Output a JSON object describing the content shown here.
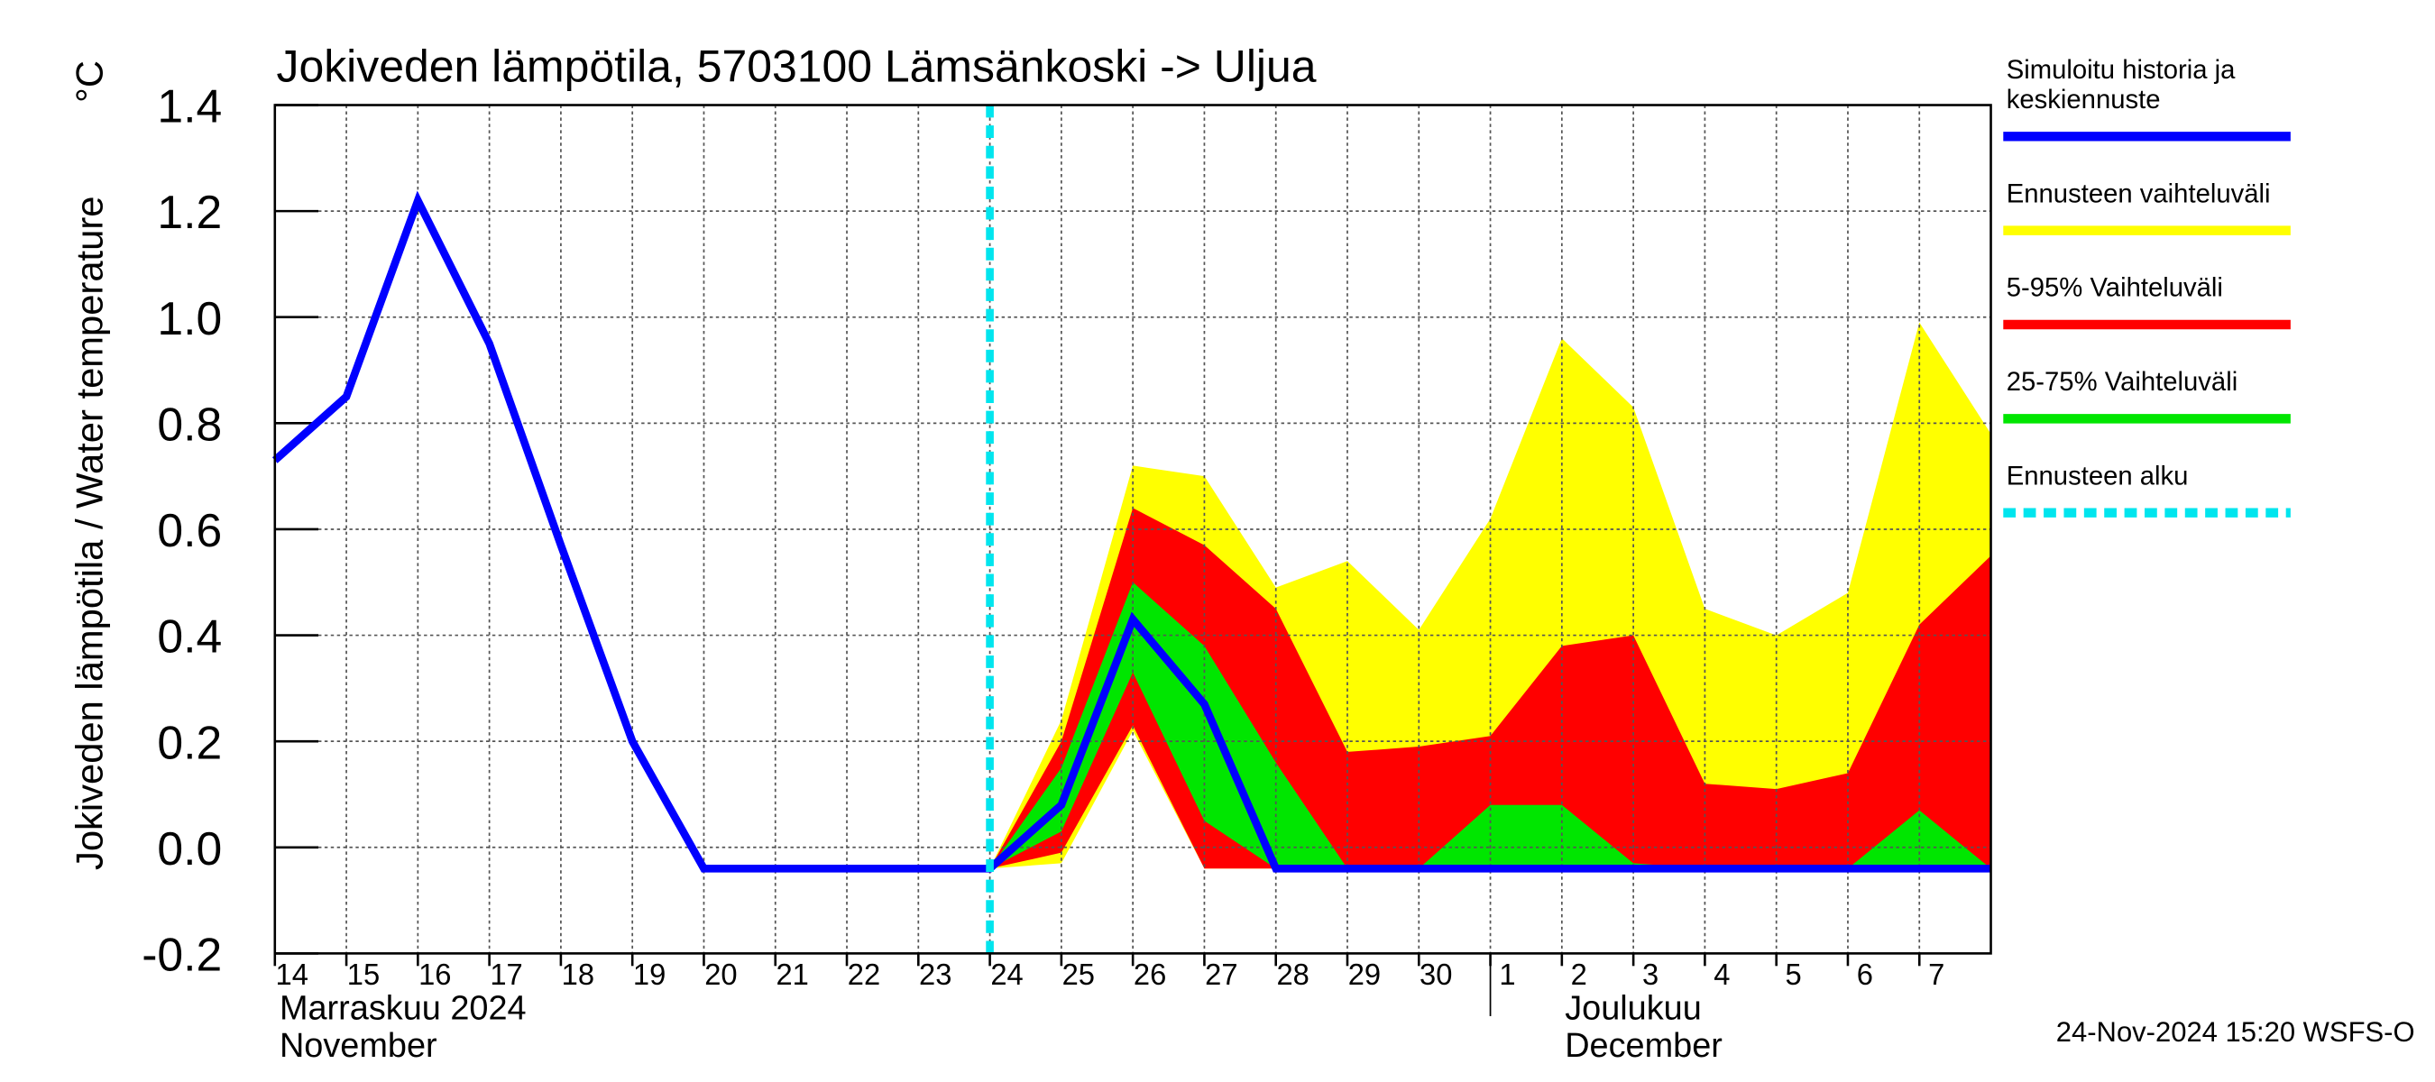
{
  "chart_data": {
    "type": "line",
    "title": "Jokiveden lämpötila, 5703100 Lämsänkoski -> Uljua",
    "y_label": "Jokiveden lämpötila / Water temperature",
    "y_unit": "°C",
    "footer": "24-Nov-2024 15:20 WSFS-O",
    "xlim": [
      "2024-11-14",
      "2024-12-08"
    ],
    "ylim": [
      -0.2,
      1.4
    ],
    "yticks": [
      -0.2,
      {
        "value": 0.0,
        "label": "0.0"
      },
      0.2,
      0.4,
      0.6,
      0.8,
      {
        "value": 1.0,
        "label": "1.0"
      },
      1.2,
      1.4
    ],
    "xticks": [
      {
        "value": "2024-11-14",
        "label": "14"
      },
      {
        "value": "2024-11-15",
        "label": "15"
      },
      {
        "value": "2024-11-16",
        "label": "16"
      },
      {
        "value": "2024-11-17",
        "label": "17"
      },
      {
        "value": "2024-11-18",
        "label": "18"
      },
      {
        "value": "2024-11-19",
        "label": "19"
      },
      {
        "value": "2024-11-20",
        "label": "20"
      },
      {
        "value": "2024-11-21",
        "label": "21"
      },
      {
        "value": "2024-11-22",
        "label": "22"
      },
      {
        "value": "2024-11-23",
        "label": "23"
      },
      {
        "value": "2024-11-24",
        "label": "24"
      },
      {
        "value": "2024-11-25",
        "label": "25"
      },
      {
        "value": "2024-11-26",
        "label": "26"
      },
      {
        "value": "2024-11-27",
        "label": "27"
      },
      {
        "value": "2024-11-28",
        "label": "28"
      },
      {
        "value": "2024-11-29",
        "label": "29"
      },
      {
        "value": "2024-11-30",
        "label": "30"
      },
      {
        "value": "2024-12-01",
        "label": "1"
      },
      {
        "value": "2024-12-02",
        "label": "2"
      },
      {
        "value": "2024-12-03",
        "label": "3"
      },
      {
        "value": "2024-12-04",
        "label": "4"
      },
      {
        "value": "2024-12-05",
        "label": "5"
      },
      {
        "value": "2024-12-06",
        "label": "6"
      },
      {
        "value": "2024-12-07",
        "label": "7"
      }
    ],
    "months": [
      {
        "start": "2024-11-14",
        "labels": [
          "Marraskuu 2024",
          "November"
        ]
      },
      {
        "start": "2024-12-01",
        "labels": [
          "Joulukuu",
          "December"
        ]
      }
    ],
    "grid": true,
    "bands": [
      {
        "name": "Ennusteen vaihteluväli",
        "color": "#ffff00",
        "x": [
          "2024-11-24",
          "2024-11-25",
          "2024-11-26",
          "2024-11-27",
          "2024-11-28",
          "2024-11-29",
          "2024-11-30",
          "2024-12-01",
          "2024-12-02",
          "2024-12-03",
          "2024-12-04",
          "2024-12-05",
          "2024-12-06",
          "2024-12-07",
          "2024-12-08"
        ],
        "high": [
          -0.04,
          0.24,
          0.72,
          0.7,
          0.49,
          0.54,
          0.41,
          0.62,
          0.96,
          0.83,
          0.45,
          0.4,
          0.48,
          0.99,
          0.78
        ],
        "low": [
          -0.04,
          -0.03,
          0.22,
          -0.04,
          -0.04,
          -0.04,
          -0.04,
          -0.04,
          -0.04,
          -0.04,
          -0.04,
          -0.04,
          -0.04,
          -0.04,
          -0.04
        ]
      },
      {
        "name": "5-95% Vaihteluväli",
        "color": "#ff0000",
        "x": [
          "2024-11-24",
          "2024-11-25",
          "2024-11-26",
          "2024-11-27",
          "2024-11-28",
          "2024-11-29",
          "2024-11-30",
          "2024-12-01",
          "2024-12-02",
          "2024-12-03",
          "2024-12-04",
          "2024-12-05",
          "2024-12-06",
          "2024-12-07",
          "2024-12-08"
        ],
        "high": [
          -0.04,
          0.2,
          0.64,
          0.57,
          0.45,
          0.18,
          0.19,
          0.21,
          0.38,
          0.4,
          0.12,
          0.11,
          0.14,
          0.42,
          0.55
        ],
        "low": [
          -0.04,
          -0.01,
          0.23,
          -0.04,
          -0.04,
          -0.04,
          -0.04,
          -0.04,
          -0.04,
          -0.04,
          -0.04,
          -0.04,
          -0.04,
          -0.04,
          -0.04
        ]
      },
      {
        "name": "25-75% Vaihteluväli",
        "color": "#00e600",
        "x": [
          "2024-11-24",
          "2024-11-25",
          "2024-11-26",
          "2024-11-27",
          "2024-11-28",
          "2024-11-29",
          "2024-11-30",
          "2024-12-01",
          "2024-12-02",
          "2024-12-03",
          "2024-12-04",
          "2024-12-05",
          "2024-12-06",
          "2024-12-07",
          "2024-12-08"
        ],
        "high": [
          -0.04,
          0.15,
          0.5,
          0.38,
          0.16,
          -0.04,
          -0.04,
          0.08,
          0.08,
          -0.03,
          -0.04,
          -0.04,
          -0.04,
          0.07,
          -0.04
        ],
        "low": [
          -0.04,
          0.03,
          0.33,
          0.05,
          -0.04,
          -0.04,
          -0.04,
          -0.04,
          -0.04,
          -0.04,
          -0.04,
          -0.04,
          -0.04,
          -0.04,
          -0.04
        ]
      }
    ],
    "series": [
      {
        "name": "Simuloitu historia ja\nkeskiennuste",
        "color": "#0000ff",
        "x": [
          "2024-11-14",
          "2024-11-15",
          "2024-11-16",
          "2024-11-17",
          "2024-11-18",
          "2024-11-19",
          "2024-11-20",
          "2024-11-21",
          "2024-11-22",
          "2024-11-23",
          "2024-11-24",
          "2024-11-25",
          "2024-11-26",
          "2024-11-27",
          "2024-11-28",
          "2024-11-29",
          "2024-11-30",
          "2024-12-01",
          "2024-12-02",
          "2024-12-03",
          "2024-12-04",
          "2024-12-05",
          "2024-12-06",
          "2024-12-07",
          "2024-12-08"
        ],
        "values": [
          0.73,
          0.85,
          1.22,
          0.95,
          0.57,
          0.2,
          -0.04,
          -0.04,
          -0.04,
          -0.04,
          -0.04,
          0.08,
          0.43,
          0.27,
          -0.04,
          -0.04,
          -0.04,
          -0.04,
          -0.04,
          -0.04,
          -0.04,
          -0.04,
          -0.04,
          -0.04,
          -0.04
        ]
      }
    ],
    "forecast_start": {
      "name": "Ennusteen alku",
      "color": "#00e5ee",
      "x": "2024-11-24"
    }
  }
}
